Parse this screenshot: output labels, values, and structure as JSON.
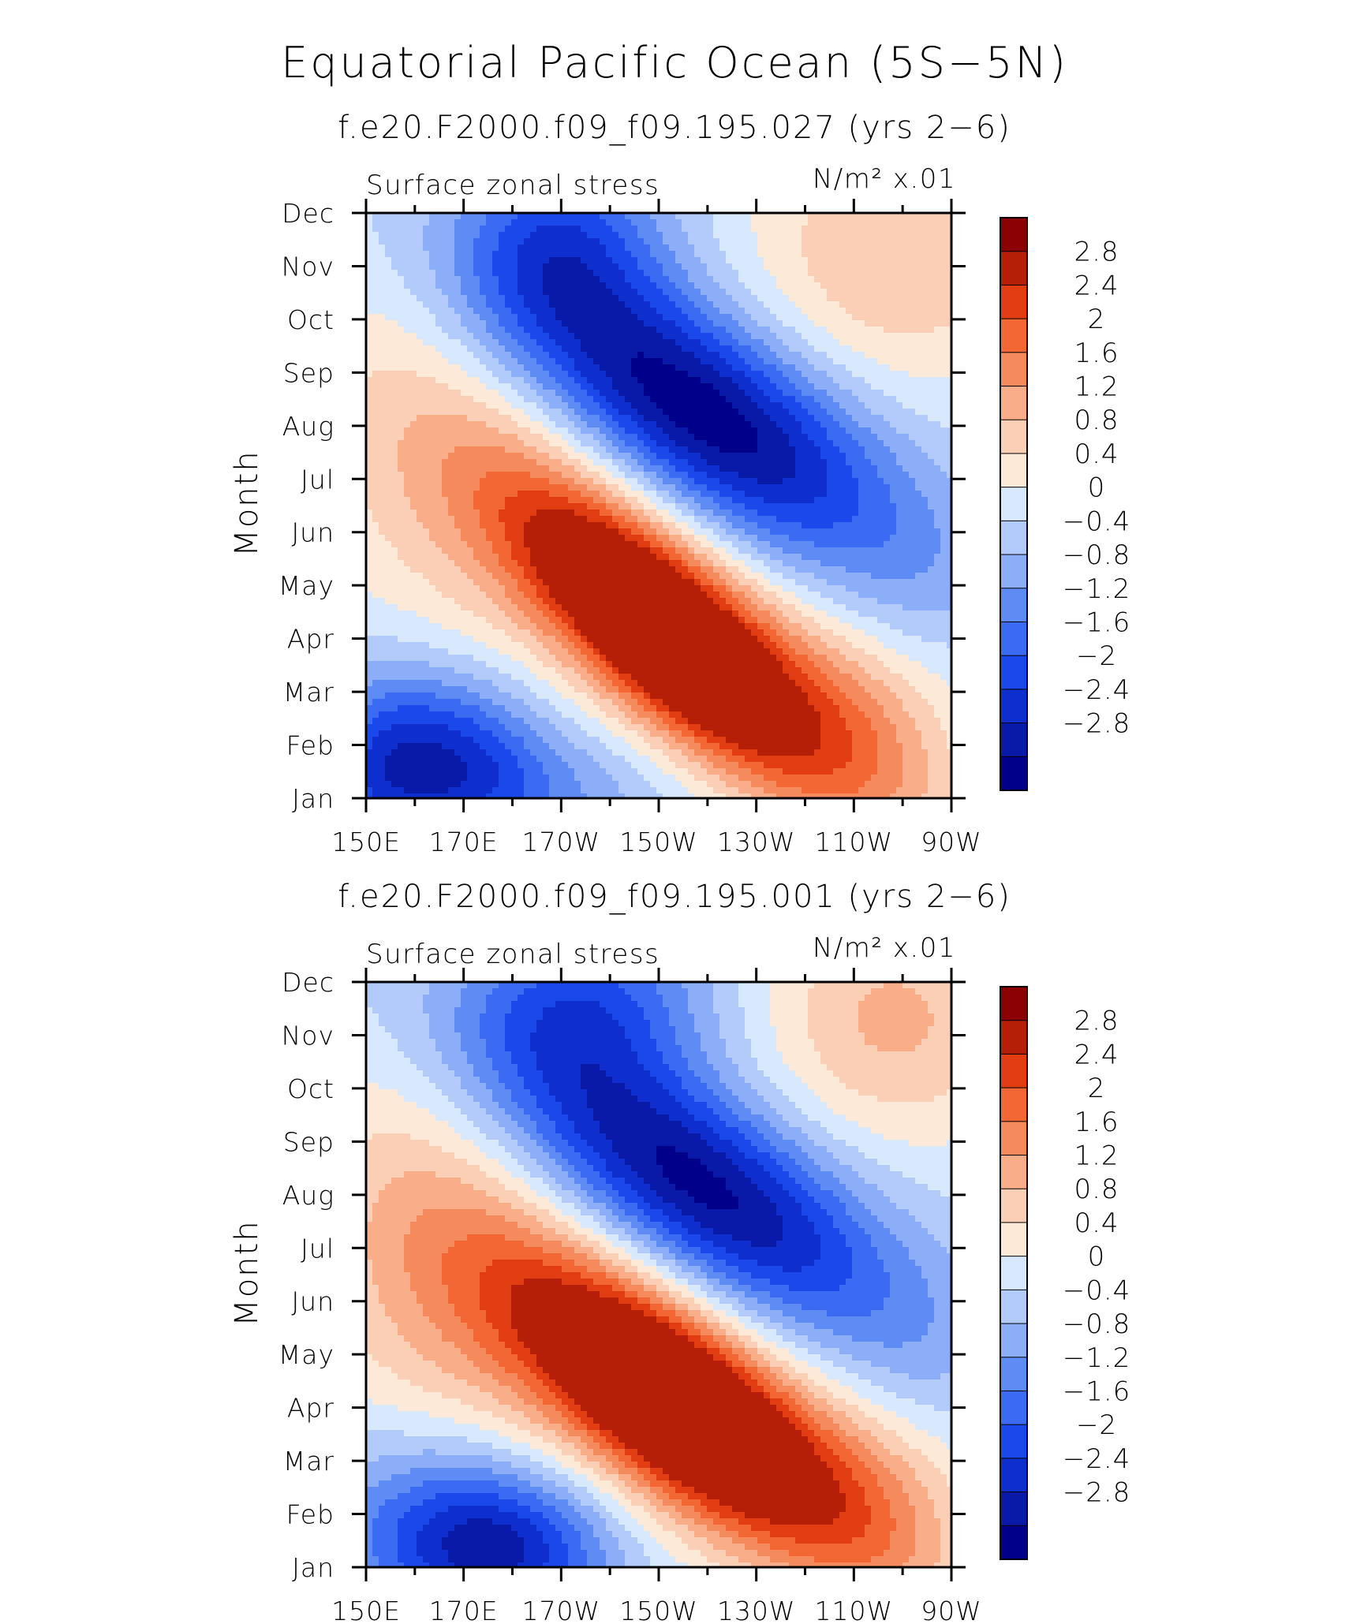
{
  "figure": {
    "title": "Equatorial Pacific Ocean (5S−5N)"
  },
  "colors": {
    "levels_palette": [
      "#00008b",
      "#0a1aa8",
      "#0e2fcd",
      "#1a48ea",
      "#3a6bf2",
      "#5f8cf4",
      "#8caef8",
      "#b3cbfb",
      "#d8e8fd",
      "#fde9d8",
      "#fbcfb5",
      "#f9ad88",
      "#f58a5c",
      "#f26733",
      "#e23d12",
      "#b51f08",
      "#8b0000"
    ],
    "frame": "#000000",
    "background": "#ffffff"
  },
  "chart_data": [
    {
      "type": "heatmap",
      "subtitle": "f.e20.F2000.f09_f09.195.027 (yrs 2−6)",
      "left_label": "Surface zonal stress",
      "units_label": "N/m² x.01",
      "xlabel": "",
      "ylabel": "Month",
      "x_ticks": [
        "150E",
        "170E",
        "170W",
        "150W",
        "130W",
        "110W",
        "90W"
      ],
      "x_tick_values": [
        150,
        170,
        190,
        210,
        230,
        250,
        270
      ],
      "xlim": [
        150,
        270
      ],
      "y_ticks": [
        "Jan",
        "Feb",
        "Mar",
        "Apr",
        "May",
        "Jun",
        "Jul",
        "Aug",
        "Sep",
        "Oct",
        "Nov",
        "Dec"
      ],
      "ylim": [
        1,
        12
      ],
      "colorbar": {
        "labels": [
          "2.8",
          "2.4",
          "2",
          "1.6",
          "1.2",
          "0.8",
          "0.4",
          "0",
          "−0.4",
          "−0.8",
          "−1.2",
          "−1.6",
          "−2",
          "−2.4",
          "−2.8"
        ],
        "levels": [
          -2.8,
          -2.4,
          -2.0,
          -1.6,
          -1.2,
          -0.8,
          -0.4,
          0,
          0.4,
          0.8,
          1.2,
          1.6,
          2.0,
          2.4,
          2.8
        ]
      },
      "features": [
        {
          "lon": 210,
          "month": 4.0,
          "value": 3.4,
          "sx": 22,
          "sy": 1.05,
          "rot": -0.44
        },
        {
          "lon": 230,
          "month": 3.6,
          "value": 1.6,
          "sx": 28,
          "sy": 1.2,
          "rot": -0.45
        },
        {
          "lon": 185,
          "month": 5.6,
          "value": 0.9,
          "sx": 30,
          "sy": 1.6,
          "rot": -0.4
        },
        {
          "lon": 165,
          "month": 7.5,
          "value": 0.6,
          "sx": 25,
          "sy": 3.5,
          "rot": 0
        },
        {
          "lon": 258,
          "month": 11.2,
          "value": 1.2,
          "sx": 22,
          "sy": 1.8,
          "rot": 0
        },
        {
          "lon": 255,
          "month": 2.5,
          "value": 0.9,
          "sx": 15,
          "sy": 1.6,
          "rot": 0
        },
        {
          "lon": 218,
          "month": 8.3,
          "value": -3.2,
          "sx": 30,
          "sy": 1.35,
          "rot": -0.3
        },
        {
          "lon": 190,
          "month": 11.5,
          "value": -1.6,
          "sx": 15,
          "sy": 1.3,
          "rot": 0
        },
        {
          "lon": 165,
          "month": 1.9,
          "value": -2.0,
          "sx": 14,
          "sy": 1.1,
          "rot": 0
        },
        {
          "lon": 180,
          "month": 1.0,
          "value": -1.0,
          "sx": 20,
          "sy": 0.9,
          "rot": 0
        },
        {
          "lon": 152,
          "month": 1.4,
          "value": -0.8,
          "sx": 8,
          "sy": 1.5,
          "rot": 0
        },
        {
          "lon": 262,
          "month": 4.6,
          "value": -0.3,
          "sx": 10,
          "sy": 1.2,
          "rot": 0
        }
      ]
    },
    {
      "type": "heatmap",
      "subtitle": "f.e20.F2000.f09_f09.195.001 (yrs 2−6)",
      "left_label": "Surface zonal stress",
      "units_label": "N/m² x.01",
      "xlabel": "",
      "ylabel": "Month",
      "x_ticks": [
        "150E",
        "170E",
        "170W",
        "150W",
        "130W",
        "110W",
        "90W"
      ],
      "x_tick_values": [
        150,
        170,
        190,
        210,
        230,
        250,
        270
      ],
      "xlim": [
        150,
        270
      ],
      "y_ticks": [
        "Jan",
        "Feb",
        "Mar",
        "Apr",
        "May",
        "Jun",
        "Jul",
        "Aug",
        "Sep",
        "Oct",
        "Nov",
        "Dec"
      ],
      "ylim": [
        1,
        12
      ],
      "colorbar": {
        "labels": [
          "2.8",
          "2.4",
          "2",
          "1.6",
          "1.2",
          "0.8",
          "0.4",
          "0",
          "−0.4",
          "−0.8",
          "−1.2",
          "−1.6",
          "−2",
          "−2.4",
          "−2.8"
        ],
        "levels": [
          -2.8,
          -2.4,
          -2.0,
          -1.6,
          -1.2,
          -0.8,
          -0.4,
          0,
          0.4,
          0.8,
          1.2,
          1.6,
          2.0,
          2.4,
          2.8
        ]
      },
      "features": [
        {
          "lon": 212,
          "month": 4.0,
          "value": 3.5,
          "sx": 24,
          "sy": 1.15,
          "rot": -0.38
        },
        {
          "lon": 232,
          "month": 3.6,
          "value": 1.5,
          "sx": 28,
          "sy": 1.25,
          "rot": -0.42
        },
        {
          "lon": 185,
          "month": 5.2,
          "value": 1.0,
          "sx": 30,
          "sy": 1.7,
          "rot": -0.38
        },
        {
          "lon": 162,
          "month": 6.5,
          "value": 0.8,
          "sx": 20,
          "sy": 3.5,
          "rot": 0
        },
        {
          "lon": 258,
          "month": 11.3,
          "value": 1.3,
          "sx": 20,
          "sy": 1.7,
          "rot": 0
        },
        {
          "lon": 258,
          "month": 2.5,
          "value": 0.8,
          "sx": 14,
          "sy": 1.6,
          "rot": 0
        },
        {
          "lon": 218,
          "month": 8.2,
          "value": -3.0,
          "sx": 30,
          "sy": 1.3,
          "rot": -0.3
        },
        {
          "lon": 195,
          "month": 11.6,
          "value": -1.6,
          "sx": 18,
          "sy": 1.2,
          "rot": 0
        },
        {
          "lon": 178,
          "month": 1.3,
          "value": -2.2,
          "sx": 16,
          "sy": 1.0,
          "rot": 0
        },
        {
          "lon": 162,
          "month": 2.0,
          "value": -1.2,
          "sx": 18,
          "sy": 1.3,
          "rot": 0
        },
        {
          "lon": 262,
          "month": 4.5,
          "value": -0.3,
          "sx": 10,
          "sy": 1.2,
          "rot": 0
        }
      ]
    }
  ]
}
